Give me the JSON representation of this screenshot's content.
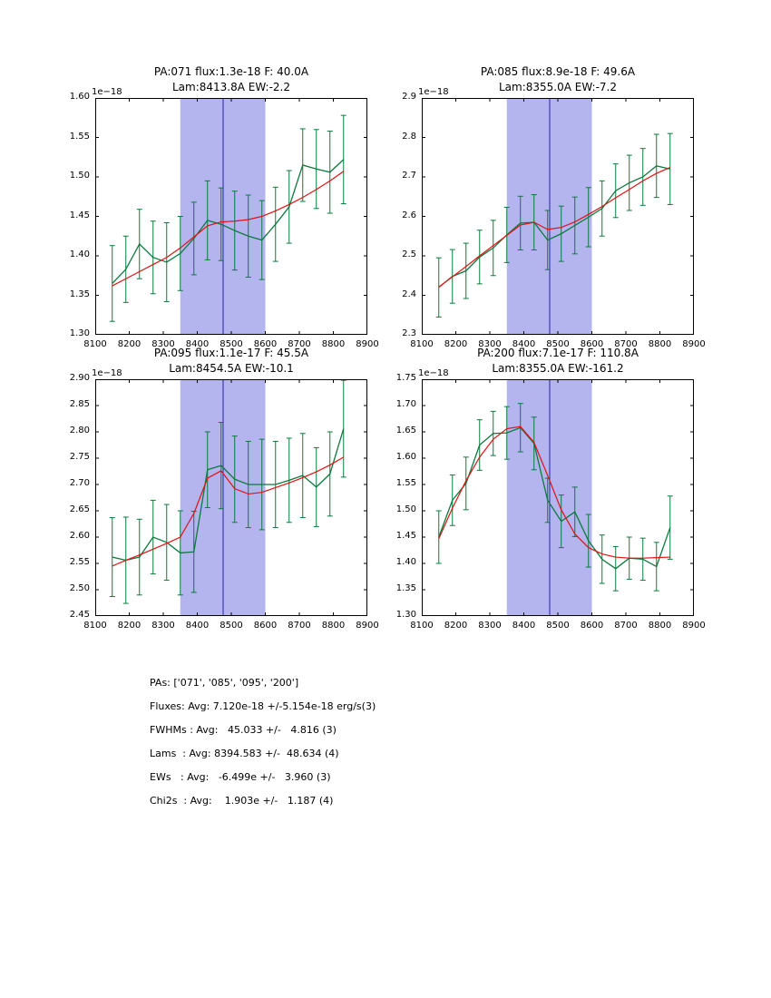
{
  "figure": {
    "background": "#ffffff",
    "data_color": "#0b7a3e",
    "fit_color": "#e01212",
    "band_color": "#b4b4ee",
    "vline_color": "#2424a8",
    "axis_color": "#000000"
  },
  "chart_data": [
    {
      "type": "line",
      "title_line1": "PA:071 flux:1.3e-18 F: 40.0A",
      "title_line2": "Lam:8413.8A EW:-2.2",
      "offset_label": "1e−18",
      "xlim": [
        8100,
        8900
      ],
      "ylim": [
        1.3,
        1.6
      ],
      "band": [
        8350,
        8600
      ],
      "vline_x": 8476,
      "xticks": [
        8100,
        8200,
        8300,
        8400,
        8500,
        8600,
        8700,
        8800,
        8900
      ],
      "xtick_labels": [
        "8100",
        "8200",
        "8300",
        "8400",
        "8500",
        "8600",
        "8700",
        "8800",
        "8900"
      ],
      "yticks": [
        1.3,
        1.35,
        1.4,
        1.45,
        1.5,
        1.55,
        1.6
      ],
      "ytick_labels": [
        "1.30",
        "1.35",
        "1.40",
        "1.45",
        "1.50",
        "1.55",
        "1.60"
      ],
      "x": [
        8150,
        8190,
        8230,
        8270,
        8310,
        8350,
        8390,
        8430,
        8470,
        8510,
        8550,
        8590,
        8630,
        8670,
        8710,
        8750,
        8790,
        8830
      ],
      "y": [
        1.365,
        1.383,
        1.415,
        1.398,
        1.392,
        1.403,
        1.422,
        1.445,
        1.44,
        1.432,
        1.425,
        1.42,
        1.44,
        1.462,
        1.515,
        1.51,
        1.506,
        1.522
      ],
      "yerr": [
        0.048,
        0.042,
        0.044,
        0.046,
        0.05,
        0.047,
        0.046,
        0.05,
        0.046,
        0.05,
        0.052,
        0.05,
        0.047,
        0.046,
        0.046,
        0.05,
        0.052,
        0.056
      ],
      "fit": [
        1.362,
        1.371,
        1.38,
        1.389,
        1.398,
        1.41,
        1.424,
        1.438,
        1.443,
        1.444,
        1.446,
        1.45,
        1.457,
        1.465,
        1.474,
        1.484,
        1.495,
        1.507
      ]
    },
    {
      "type": "line",
      "title_line1": "PA:085 flux:8.9e-18 F: 49.6A",
      "title_line2": "Lam:8355.0A EW:-7.2",
      "offset_label": "1e−18",
      "xlim": [
        8100,
        8900
      ],
      "ylim": [
        2.3,
        2.9
      ],
      "band": [
        8350,
        8600
      ],
      "vline_x": 8476,
      "xticks": [
        8100,
        8200,
        8300,
        8400,
        8500,
        8600,
        8700,
        8800,
        8900
      ],
      "xtick_labels": [
        "8100",
        "8200",
        "8300",
        "8400",
        "8500",
        "8600",
        "8700",
        "8800",
        "8900"
      ],
      "yticks": [
        2.3,
        2.4,
        2.5,
        2.6,
        2.7,
        2.8,
        2.9
      ],
      "ytick_labels": [
        "2.3",
        "2.4",
        "2.5",
        "2.6",
        "2.7",
        "2.8",
        "2.9"
      ],
      "x": [
        8150,
        8190,
        8230,
        8270,
        8310,
        8350,
        8390,
        8430,
        8470,
        8510,
        8550,
        8590,
        8630,
        8670,
        8710,
        8750,
        8790,
        8830
      ],
      "y": [
        2.42,
        2.448,
        2.462,
        2.497,
        2.52,
        2.553,
        2.583,
        2.585,
        2.54,
        2.556,
        2.577,
        2.598,
        2.62,
        2.665,
        2.685,
        2.7,
        2.728,
        2.72
      ],
      "yerr": [
        0.075,
        0.068,
        0.07,
        0.068,
        0.07,
        0.07,
        0.068,
        0.07,
        0.075,
        0.07,
        0.072,
        0.075,
        0.07,
        0.068,
        0.07,
        0.072,
        0.08,
        0.09
      ],
      "fit": [
        2.421,
        2.447,
        2.473,
        2.5,
        2.526,
        2.552,
        2.578,
        2.585,
        2.567,
        2.572,
        2.586,
        2.605,
        2.625,
        2.647,
        2.668,
        2.69,
        2.709,
        2.724
      ]
    },
    {
      "type": "line",
      "title_line1": "PA:095 flux:1.1e-17 F: 45.5A",
      "title_line2": "Lam:8454.5A EW:-10.1",
      "offset_label": "1e−18",
      "xlim": [
        8100,
        8900
      ],
      "ylim": [
        2.45,
        2.9
      ],
      "band": [
        8350,
        8600
      ],
      "vline_x": 8476,
      "xticks": [
        8100,
        8200,
        8300,
        8400,
        8500,
        8600,
        8700,
        8800,
        8900
      ],
      "xtick_labels": [
        "8100",
        "8200",
        "8300",
        "8400",
        "8500",
        "8600",
        "8700",
        "8800",
        "8900"
      ],
      "yticks": [
        2.45,
        2.5,
        2.55,
        2.6,
        2.65,
        2.7,
        2.75,
        2.8,
        2.85,
        2.9
      ],
      "ytick_labels": [
        "2.45",
        "2.50",
        "2.55",
        "2.60",
        "2.65",
        "2.70",
        "2.75",
        "2.80",
        "2.85",
        "2.90"
      ],
      "x": [
        8150,
        8190,
        8230,
        8270,
        8310,
        8350,
        8390,
        8430,
        8470,
        8510,
        8550,
        8590,
        8630,
        8670,
        8710,
        8750,
        8790,
        8830
      ],
      "y": [
        2.562,
        2.556,
        2.562,
        2.6,
        2.59,
        2.57,
        2.572,
        2.728,
        2.736,
        2.71,
        2.7,
        2.7,
        2.7,
        2.708,
        2.717,
        2.695,
        2.72,
        2.806
      ],
      "yerr": [
        0.075,
        0.082,
        0.072,
        0.07,
        0.072,
        0.08,
        0.077,
        0.072,
        0.082,
        0.082,
        0.082,
        0.086,
        0.082,
        0.08,
        0.08,
        0.075,
        0.08,
        0.092
      ],
      "fit": [
        2.545,
        2.556,
        2.566,
        2.577,
        2.588,
        2.6,
        2.645,
        2.712,
        2.726,
        2.692,
        2.682,
        2.685,
        2.694,
        2.703,
        2.713,
        2.724,
        2.737,
        2.752
      ]
    },
    {
      "type": "line",
      "title_line1": "PA:200 flux:7.1e-17 F: 110.8A",
      "title_line2": "Lam:8355.0A EW:-161.2",
      "offset_label": "1e−18",
      "xlim": [
        8100,
        8900
      ],
      "ylim": [
        1.3,
        1.75
      ],
      "band": [
        8350,
        8600
      ],
      "vline_x": 8476,
      "xticks": [
        8100,
        8200,
        8300,
        8400,
        8500,
        8600,
        8700,
        8800,
        8900
      ],
      "xtick_labels": [
        "8100",
        "8200",
        "8300",
        "8400",
        "8500",
        "8600",
        "8700",
        "8800",
        "8900"
      ],
      "yticks": [
        1.3,
        1.35,
        1.4,
        1.45,
        1.5,
        1.55,
        1.6,
        1.65,
        1.7,
        1.75
      ],
      "ytick_labels": [
        "1.30",
        "1.35",
        "1.40",
        "1.45",
        "1.50",
        "1.55",
        "1.60",
        "1.65",
        "1.70",
        "1.75"
      ],
      "x": [
        8150,
        8190,
        8230,
        8270,
        8310,
        8350,
        8390,
        8430,
        8470,
        8510,
        8550,
        8590,
        8630,
        8670,
        8710,
        8750,
        8790,
        8830
      ],
      "y": [
        1.45,
        1.52,
        1.552,
        1.625,
        1.647,
        1.648,
        1.658,
        1.628,
        1.52,
        1.48,
        1.498,
        1.443,
        1.408,
        1.39,
        1.41,
        1.408,
        1.394,
        1.468
      ],
      "yerr": [
        0.05,
        0.048,
        0.05,
        0.048,
        0.042,
        0.05,
        0.046,
        0.05,
        0.042,
        0.05,
        0.047,
        0.05,
        0.046,
        0.042,
        0.04,
        0.04,
        0.046,
        0.06
      ],
      "fit": [
        1.447,
        1.505,
        1.557,
        1.602,
        1.636,
        1.656,
        1.66,
        1.63,
        1.567,
        1.502,
        1.456,
        1.43,
        1.418,
        1.412,
        1.41,
        1.41,
        1.411,
        1.412
      ]
    }
  ],
  "summary": {
    "lines": [
      "PAs: ['071', '085', '095', '200']",
      "Fluxes: Avg: 7.120e-18 +/-5.154e-18 erg/s(3)",
      "FWHMs : Avg:   45.033 +/-   4.816 (3)",
      "Lams  : Avg: 8394.583 +/-  48.634 (4)",
      "EWs   : Avg:   -6.499e +/-   3.960 (3)",
      "Chi2s  : Avg:    1.903e +/-   1.187 (4)"
    ]
  }
}
